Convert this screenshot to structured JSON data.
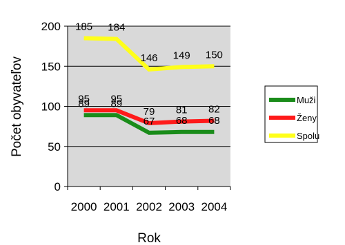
{
  "chart_data": {
    "type": "line",
    "title": "",
    "xlabel": "Rok",
    "ylabel": "Počet obyvateľov",
    "categories": [
      "2000",
      "2001",
      "2002",
      "2003",
      "2004"
    ],
    "ylim": [
      0,
      200
    ],
    "yticks": [
      "0",
      "50",
      "100",
      "150",
      "200"
    ],
    "grid": true,
    "legend_position": "right",
    "plot_background": "#d9d9d9",
    "series": [
      {
        "name": "Muži",
        "color": "#1a8c1a",
        "values": [
          89,
          89,
          67,
          68,
          68
        ]
      },
      {
        "name": "Ženy",
        "color": "#ff1a1a",
        "values": [
          95,
          95,
          79,
          81,
          82
        ]
      },
      {
        "name": "Spolu",
        "color": "#ffff1a",
        "values": [
          185,
          184,
          146,
          149,
          150
        ]
      }
    ]
  }
}
